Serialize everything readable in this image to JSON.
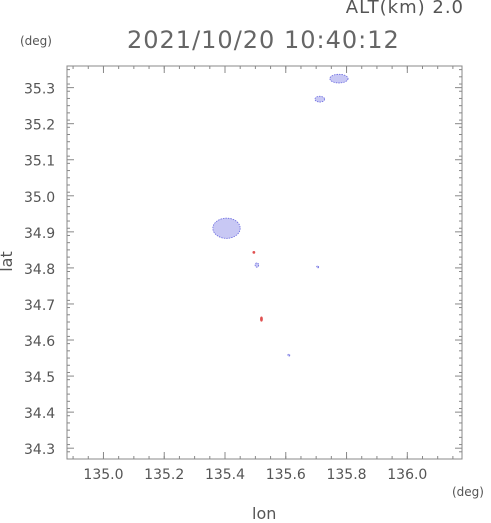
{
  "header": {
    "altitude_label": "ALT(km) 2.0",
    "timestamp": "2021/10/20 10:40:12",
    "y_unit": "(deg)",
    "x_unit": "(deg)"
  },
  "chart_data": {
    "type": "scatter",
    "xlabel": "lon",
    "ylabel": "lat",
    "xlim": [
      134.88,
      136.18
    ],
    "ylim": [
      34.27,
      35.36
    ],
    "x_ticks": [
      "135.0",
      "135.2",
      "135.4",
      "135.6",
      "135.8",
      "136.0"
    ],
    "y_ticks": [
      "34.3",
      "34.4",
      "34.5",
      "34.6",
      "34.7",
      "34.8",
      "34.9",
      "35.0",
      "35.1",
      "35.2",
      "35.3"
    ],
    "grid": false,
    "colors": {
      "echo_weak": "#c8c8f4",
      "echo_edge": "#6a6ae0",
      "echo_strong": "#e05050",
      "axis": "#888888"
    },
    "echo_clusters": [
      {
        "lon": 135.775,
        "lat": 35.325,
        "rx": 0.03,
        "ry": 0.012,
        "level": "weak"
      },
      {
        "lon": 135.712,
        "lat": 35.268,
        "rx": 0.016,
        "ry": 0.008,
        "level": "weak"
      },
      {
        "lon": 135.405,
        "lat": 34.91,
        "rx": 0.045,
        "ry": 0.028,
        "level": "weak"
      },
      {
        "lon": 135.505,
        "lat": 34.808,
        "rx": 0.006,
        "ry": 0.006,
        "level": "weak"
      },
      {
        "lon": 135.52,
        "lat": 34.658,
        "rx": 0.003,
        "ry": 0.006,
        "level": "strong"
      },
      {
        "lon": 135.495,
        "lat": 34.843,
        "rx": 0.002,
        "ry": 0.002,
        "level": "strong"
      },
      {
        "lon": 135.61,
        "lat": 34.558,
        "rx": 0.002,
        "ry": 0.002,
        "level": "weak"
      },
      {
        "lon": 135.705,
        "lat": 34.803,
        "rx": 0.002,
        "ry": 0.002,
        "level": "weak"
      }
    ]
  }
}
